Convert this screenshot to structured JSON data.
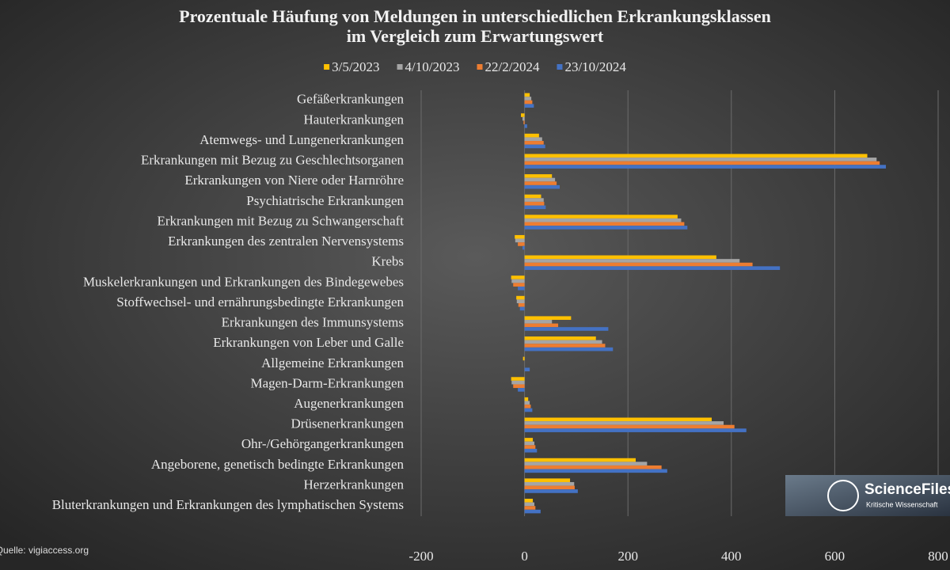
{
  "chart_data": {
    "type": "hbar",
    "title": [
      "Prozentuale Häufung von Meldungen in unterschiedlichen Erkrankungsklassen",
      "im Vergleich zum Erwartungswert"
    ],
    "categories": [
      "Gefäßerkrankungen",
      "Hauterkrankungen",
      "Atemwegs- und Lungenerkrankungen",
      "Erkrankungen mit Bezug zu Geschlechtsorganen",
      "Erkrankungen von Niere oder Harnröhre",
      "Psychiatrische Erkrankungen",
      "Erkrankungen mit Bezug zu Schwangerschaft",
      "Erkrankungen des zentralen Nervensystems",
      "Krebs",
      "Muskelerkrankungen und Erkrankungen des Bindegewebes",
      "Stoffwechsel- und ernährungsbedingte Erkrankungen",
      "Erkrankungen des Immunsystems",
      "Erkrankungen von Leber und Galle",
      "Allgemeine Erkrankungen",
      "Magen-Darm-Erkrankungen",
      "Augenerkrankungen",
      "Drüsenerkrankungen",
      "Ohr-/Gehörgangerkrankungen",
      "Angeborene, genetisch bedingte Erkrankungen",
      "Herzerkrankungen",
      "Bluterkrankungen und Erkrankungen des lymphatischen Systems"
    ],
    "series": [
      {
        "name": "3/5/2023",
        "color": "#ffc000",
        "values": [
          10,
          -7,
          28,
          663,
          53,
          32,
          296,
          -19,
          371,
          -26,
          -16,
          90,
          138,
          -3,
          -26,
          7,
          362,
          16,
          215,
          88,
          16
        ]
      },
      {
        "name": "4/10/2023",
        "color": "#a5a5a5",
        "values": [
          13,
          -4,
          34,
          681,
          59,
          37,
          303,
          -18,
          416,
          -25,
          -15,
          53,
          150,
          0,
          -25,
          10,
          385,
          19,
          237,
          96,
          19
        ]
      },
      {
        "name": "22/2/2024",
        "color": "#ed7d31",
        "values": [
          15,
          -2,
          37,
          687,
          62,
          38,
          309,
          -13,
          441,
          -22,
          -12,
          65,
          156,
          0,
          -22,
          12,
          406,
          21,
          265,
          97,
          21
        ]
      },
      {
        "name": "23/10/2024",
        "color": "#4472c4",
        "values": [
          18,
          5,
          40,
          699,
          68,
          41,
          315,
          -4,
          494,
          -13,
          -9,
          162,
          171,
          10,
          -13,
          15,
          429,
          24,
          276,
          103,
          31
        ]
      }
    ],
    "xlim": [
      -200,
      800
    ],
    "xticks": [
      -200,
      0,
      200,
      400,
      600,
      800
    ],
    "grid": true,
    "legend": "top",
    "source": "Quelle: vigiaccess.org",
    "watermark": [
      "ScienceFiles",
      "Kritische Wissenschaft"
    ]
  }
}
